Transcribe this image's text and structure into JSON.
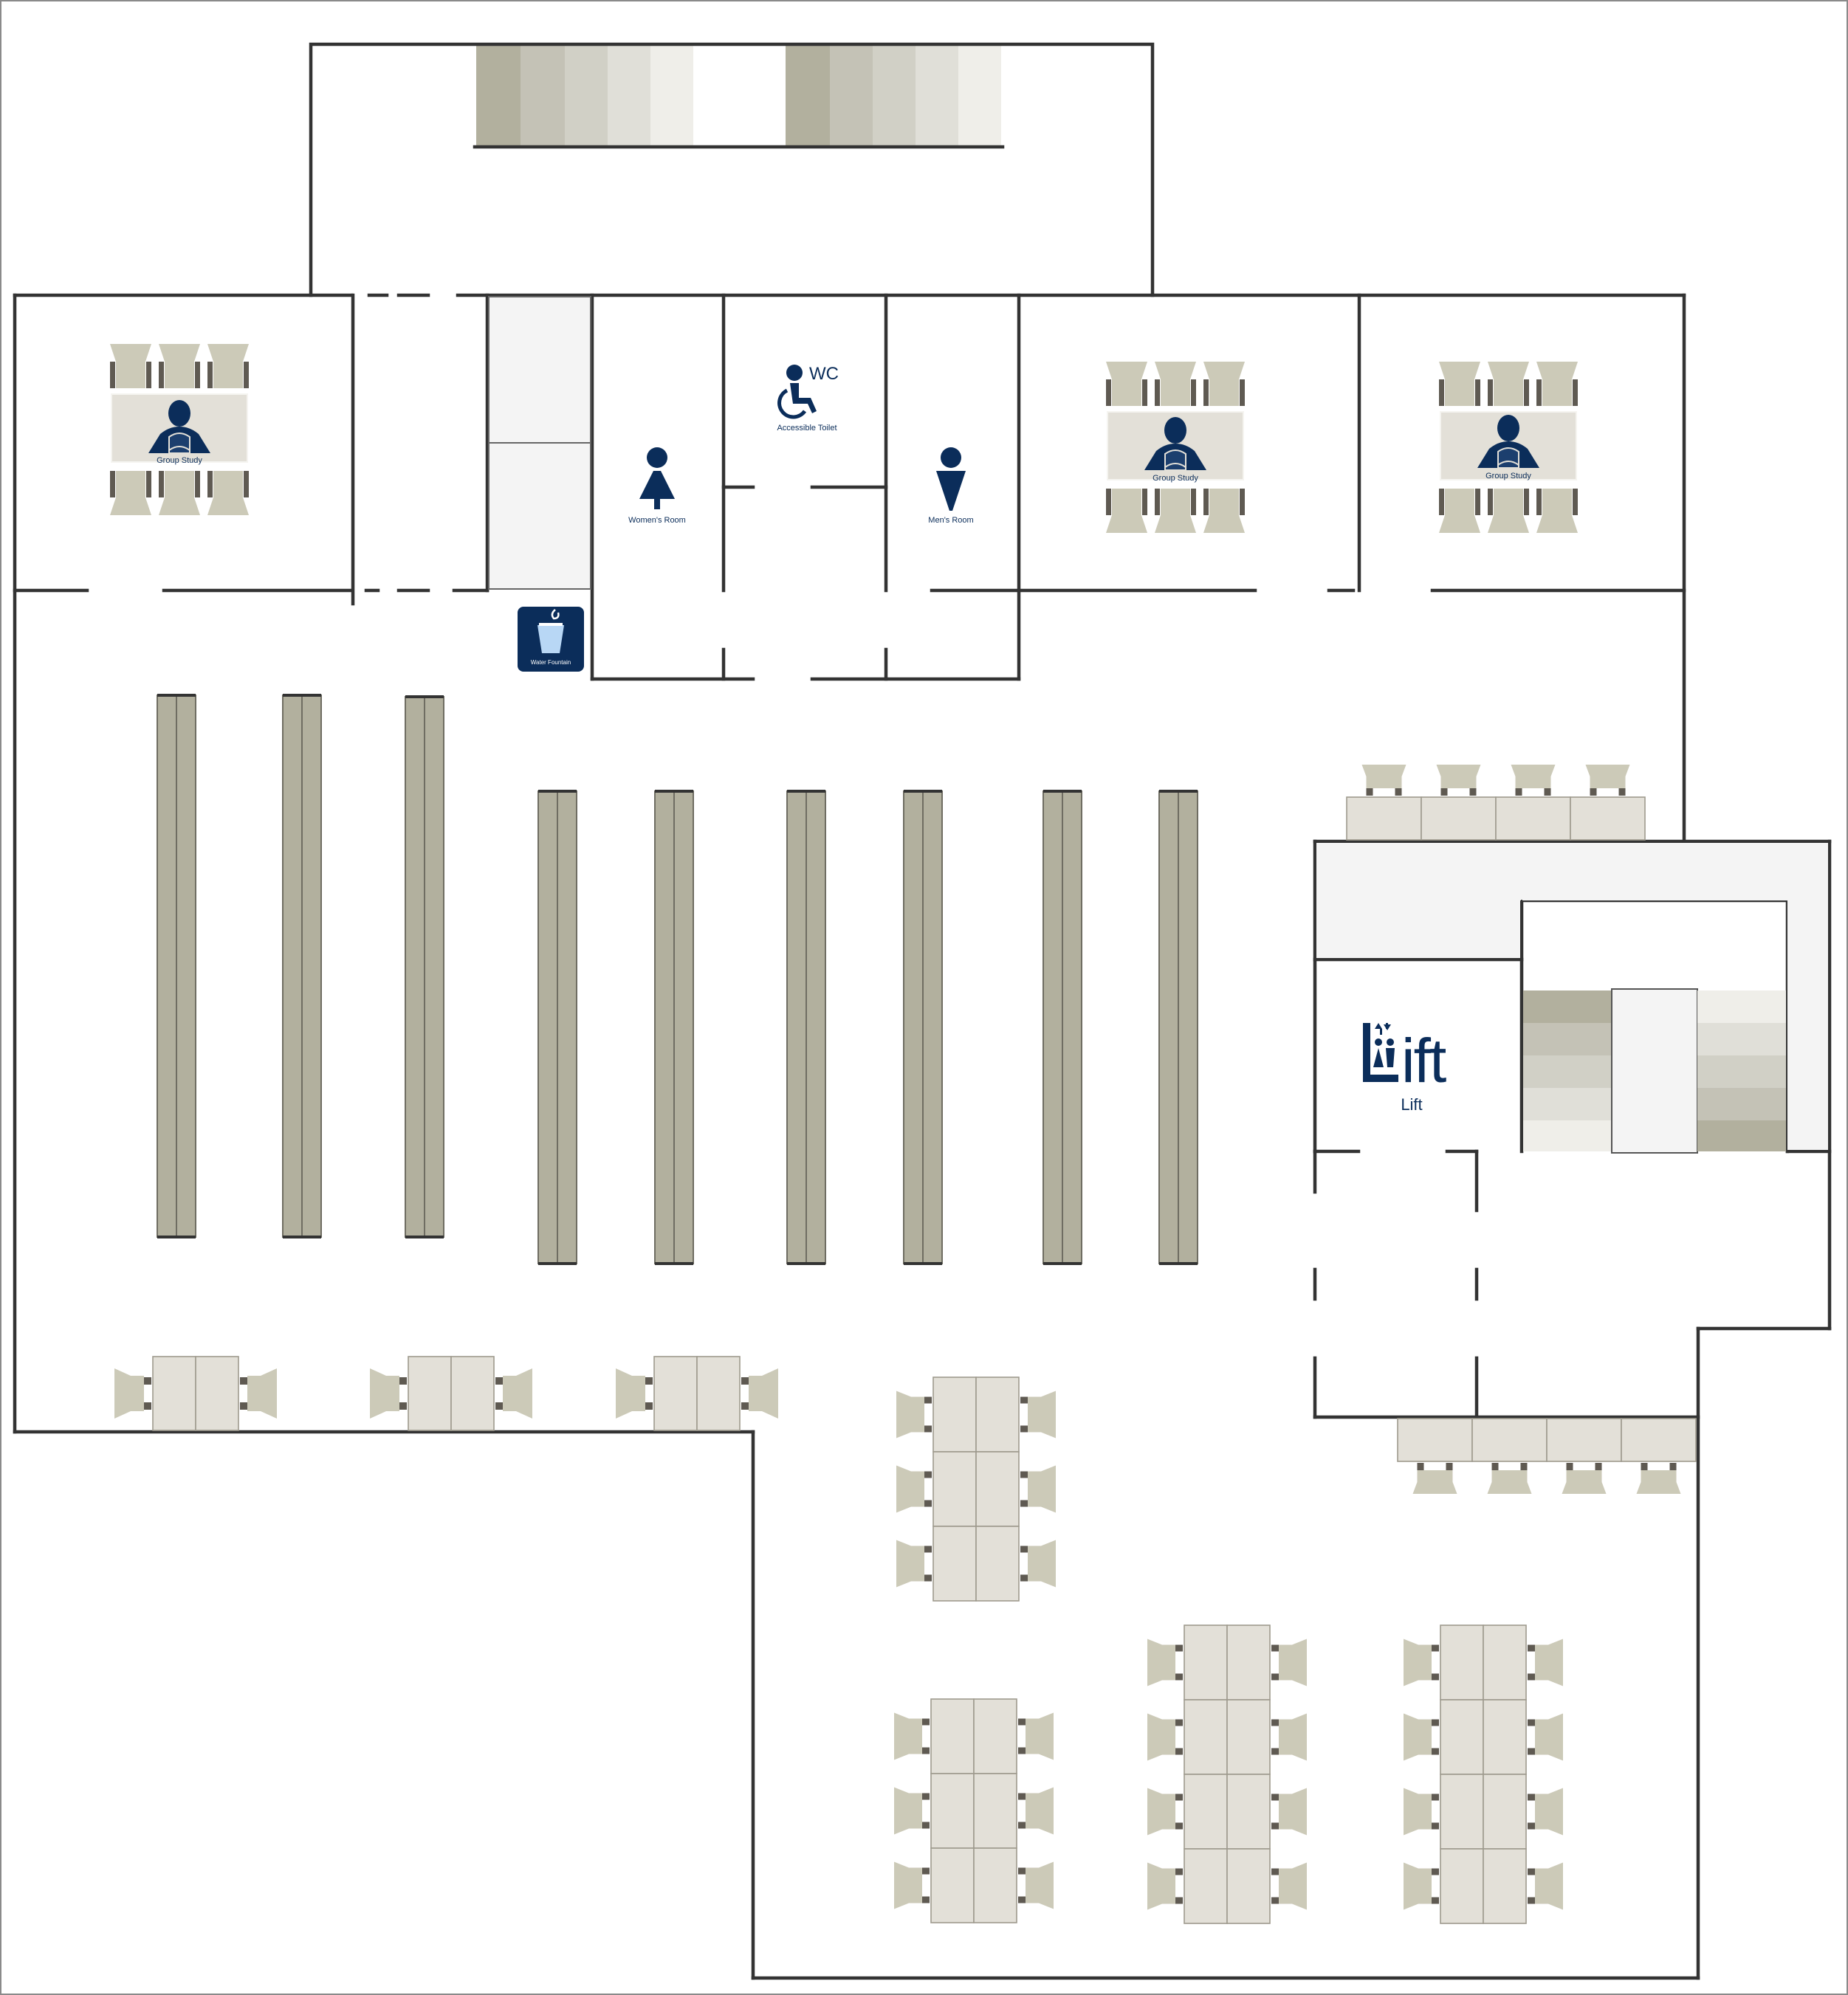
{
  "colors": {
    "wall": "#333333",
    "shelf": "#b2b09e",
    "desk": "#e3e0d8",
    "chair": "#cccab8",
    "chair_back": "#5f5a52",
    "icon_navy": "#0b2d5a",
    "stair_light": "#f1f0ec",
    "stair_dark": "#b2b09e",
    "floor": "#ffffff"
  },
  "icons": [
    "group-study-icon",
    "wheelchair-icon",
    "women-icon",
    "men-icon",
    "water-fountain-icon",
    "lift-icon"
  ],
  "rooms": {
    "group_study_1": "Group Study",
    "group_study_2": "Group Study",
    "group_study_3": "Group Study",
    "womens_room": "Women's Room",
    "mens_room": "Men's Room",
    "wc": "WC",
    "accessible_toilet": "Accessible Toilet",
    "water_fountain": "Water Fountain",
    "lift_sign": "Lift",
    "lift_label": "Lift"
  },
  "shelving": {
    "count": 9
  },
  "study_tables": {
    "count": 10
  }
}
